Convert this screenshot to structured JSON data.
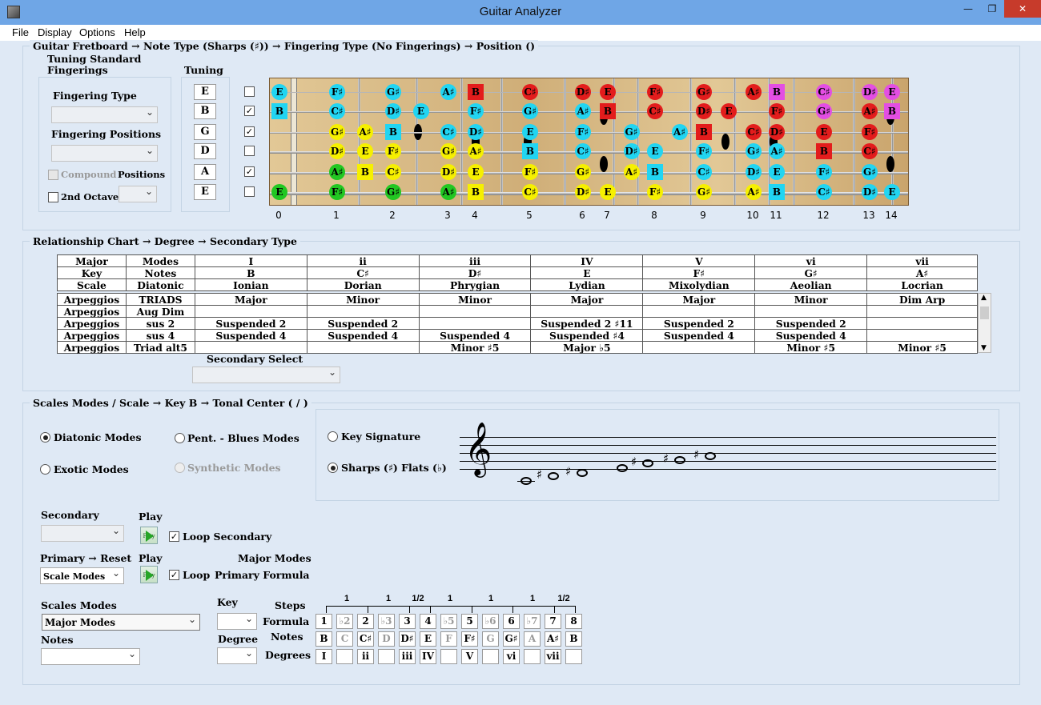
{
  "window": {
    "title": "Guitar Analyzer",
    "minimize": "—",
    "maximize": "❐",
    "close": "✕"
  },
  "menu": [
    "File",
    "Display",
    "Options",
    "Help"
  ],
  "fretboard": {
    "breadcrumb": "Guitar Fretboard  →  Note Type (Sharps (♯))  →  Fingering Type (No Fingerings)  →  Position  ()",
    "tuning_title": "Tuning Standard",
    "fingerings_label": "Fingerings",
    "tuning_label": "Tuning",
    "fingering_type_label": "Fingering Type",
    "fingering_positions_label": "Fingering Positions",
    "compound_label": "Compound",
    "positions_label": "Positions",
    "second_octave_label": "2nd Octave",
    "tuning": [
      "E",
      "B",
      "G",
      "D",
      "A",
      "E"
    ],
    "string_checked": [
      false,
      true,
      true,
      false,
      true,
      false
    ],
    "fret_numbers": [
      "0",
      "1",
      "2",
      "3",
      "4",
      "5",
      "6",
      "7",
      "8",
      "9",
      "10",
      "11",
      "12",
      "13",
      "14"
    ],
    "strings": [
      [
        [
          "E",
          0,
          "c"
        ],
        [
          "F♯",
          1,
          "c"
        ],
        [
          "G♯",
          2,
          "c"
        ],
        [
          "A♯",
          3,
          "c"
        ],
        [
          "B",
          4,
          "r"
        ],
        [
          "C♯",
          5,
          "r"
        ],
        [
          "D♯",
          6,
          "r"
        ],
        [
          "E",
          7,
          "r"
        ],
        [
          "F♯",
          8,
          "r"
        ],
        [
          "G♯",
          9,
          "r"
        ],
        [
          "A♯",
          10,
          "r"
        ],
        [
          "B",
          11,
          "m"
        ],
        [
          "C♯",
          12,
          "m"
        ],
        [
          "D♯",
          13,
          "m"
        ],
        [
          "E",
          14,
          "m"
        ]
      ],
      [
        [
          "B",
          0,
          "c"
        ],
        [
          "C♯",
          1,
          "c"
        ],
        [
          "D♯",
          2,
          "c"
        ],
        [
          "E",
          2.5,
          "c"
        ],
        [
          "F♯",
          4,
          "c"
        ],
        [
          "G♯",
          5,
          "c"
        ],
        [
          "A♯",
          6,
          "c"
        ],
        [
          "B",
          7,
          "r"
        ],
        [
          "C♯",
          8,
          "r"
        ],
        [
          "D♯",
          9,
          "r"
        ],
        [
          "E",
          9.5,
          "r"
        ],
        [
          "F♯",
          11,
          "r"
        ],
        [
          "G♯",
          12,
          "m"
        ],
        [
          "A♯",
          13,
          "r"
        ],
        [
          "B",
          14,
          "m"
        ]
      ],
      [
        [
          "G♯",
          1,
          "y"
        ],
        [
          "A♯",
          1.5,
          "y"
        ],
        [
          "B",
          2,
          "c"
        ],
        [
          "C♯",
          3,
          "c"
        ],
        [
          "D♯",
          4,
          "c"
        ],
        [
          "E",
          5,
          "c"
        ],
        [
          "F♯",
          6,
          "c"
        ],
        [
          "G♯",
          7.5,
          "c"
        ],
        [
          "A♯",
          8.5,
          "c"
        ],
        [
          "B",
          9,
          "r"
        ],
        [
          "C♯",
          10,
          "r"
        ],
        [
          "D♯",
          11,
          "r"
        ],
        [
          "E",
          12,
          "r"
        ],
        [
          "F♯",
          13,
          "r"
        ]
      ],
      [
        [
          "D♯",
          1,
          "y"
        ],
        [
          "E",
          1.5,
          "y"
        ],
        [
          "F♯",
          2,
          "y"
        ],
        [
          "G♯",
          3,
          "y"
        ],
        [
          "A♯",
          4,
          "y"
        ],
        [
          "B",
          5,
          "c"
        ],
        [
          "C♯",
          6,
          "c"
        ],
        [
          "D♯",
          7.5,
          "c"
        ],
        [
          "E",
          8,
          "c"
        ],
        [
          "F♯",
          9,
          "c"
        ],
        [
          "G♯",
          10,
          "c"
        ],
        [
          "A♯",
          11,
          "c"
        ],
        [
          "B",
          12,
          "r"
        ],
        [
          "C♯",
          13,
          "r"
        ]
      ],
      [
        [
          "A♯",
          1,
          "g"
        ],
        [
          "B",
          1.5,
          "y"
        ],
        [
          "C♯",
          2,
          "y"
        ],
        [
          "D♯",
          3,
          "y"
        ],
        [
          "E",
          4,
          "y"
        ],
        [
          "F♯",
          5,
          "y"
        ],
        [
          "G♯",
          6,
          "y"
        ],
        [
          "A♯",
          7.5,
          "y"
        ],
        [
          "B",
          8,
          "c"
        ],
        [
          "C♯",
          9,
          "c"
        ],
        [
          "D♯",
          10,
          "c"
        ],
        [
          "E",
          11,
          "c"
        ],
        [
          "F♯",
          12,
          "c"
        ],
        [
          "G♯",
          13,
          "c"
        ]
      ],
      [
        [
          "E",
          0,
          "g"
        ],
        [
          "F♯",
          1,
          "g"
        ],
        [
          "G♯",
          2,
          "g"
        ],
        [
          "A♯",
          3,
          "g"
        ],
        [
          "B",
          4,
          "y"
        ],
        [
          "C♯",
          5,
          "y"
        ],
        [
          "D♯",
          6,
          "y"
        ],
        [
          "E",
          7,
          "y"
        ],
        [
          "F♯",
          8,
          "y"
        ],
        [
          "G♯",
          9,
          "y"
        ],
        [
          "A♯",
          10,
          "y"
        ],
        [
          "B",
          11,
          "c"
        ],
        [
          "C♯",
          12,
          "c"
        ],
        [
          "D♯",
          13,
          "c"
        ],
        [
          "E",
          14,
          "c"
        ]
      ]
    ],
    "note_colors": {
      "c": "#21d5f2",
      "r": "#e31c1c",
      "m": "#e34ee3",
      "y": "#f6f000",
      "g": "#22c722"
    }
  },
  "relationship": {
    "breadcrumb": "Relationship Chart  →  Degree  →  Secondary Type",
    "rows": [
      [
        "Major",
        "Modes",
        "I",
        "ii",
        "iii",
        "IV",
        "V",
        "vi",
        "vii"
      ],
      [
        "Key",
        "Notes",
        "B",
        "C♯",
        "D♯",
        "E",
        "F♯",
        "G♯",
        "A♯"
      ],
      [
        "Scale",
        "Diatonic",
        "Ionian",
        "Dorian",
        "Phrygian",
        "Lydian",
        "Mixolydian",
        "Aeolian",
        "Locrian"
      ]
    ],
    "arp_rows": [
      [
        "Arpeggios",
        "TRIADS",
        "Major",
        "Minor",
        "Minor",
        "Major",
        "Major",
        "Minor",
        "Dim Arp"
      ],
      [
        "Arpeggios",
        "Aug Dim",
        "",
        "",
        "",
        "",
        "",
        "",
        ""
      ],
      [
        "Arpeggios",
        "sus 2",
        "Suspended 2",
        "Suspended 2",
        "",
        "Suspended 2 ♯11",
        "Suspended 2",
        "Suspended 2",
        ""
      ],
      [
        "Arpeggios",
        "sus 4",
        "Suspended 4",
        "Suspended 4",
        "Suspended 4",
        "Suspended ♯4",
        "Suspended 4",
        "Suspended 4",
        ""
      ],
      [
        "Arpeggios",
        "Triad alt5",
        "",
        "",
        "Minor ♯5",
        "Major ♭5",
        "",
        "Minor ♯5",
        "Minor ♯5"
      ]
    ],
    "secondary_select_label": "Secondary Select"
  },
  "scales": {
    "breadcrumb": "Scales Modes / Scale → Key  B → Tonal Center   (   /   )",
    "diatonic_modes": "Diatonic Modes",
    "pent_blues": "Pent. - Blues Modes",
    "exotic_modes": "Exotic Modes",
    "synthetic_modes": "Synthetic Modes",
    "key_signature": "Key Signature",
    "sharps_flats": "Sharps (♯)   Flats (♭)",
    "secondary_label": "Secondary",
    "play_label": "Play",
    "loop_secondary": "Loop Secondary",
    "primary_reset": "Primary → Reset",
    "play2_label": "Play",
    "major_modes_caption": "Major Modes",
    "loop_label": "Loop",
    "primary_formula": "Primary Formula",
    "scale_modes_value": "Scale Modes",
    "scales_modes_label": "Scales Modes",
    "scales_modes_value": "Major Modes",
    "notes_label": "Notes",
    "key_label": "Key",
    "degree_label": "Degree",
    "steps_label": "Steps",
    "formula_label": "Formula",
    "notes_row_label": "Notes",
    "degrees_label": "Degrees",
    "steps": [
      "1",
      "1",
      "1/2",
      "1",
      "1",
      "1",
      "1/2"
    ],
    "formula": [
      "1",
      "♭2",
      "2",
      "♭3",
      "3",
      "4",
      "♭5",
      "5",
      "♭6",
      "6",
      "♭7",
      "7",
      "8"
    ],
    "formula_active": [
      true,
      false,
      true,
      false,
      true,
      true,
      false,
      true,
      false,
      true,
      false,
      true,
      true
    ],
    "notes": [
      "B",
      "C",
      "C♯",
      "D",
      "D♯",
      "E",
      "F",
      "F♯",
      "G",
      "G♯",
      "A",
      "A♯",
      "B"
    ],
    "degrees": [
      "I",
      "",
      "ii",
      "",
      "iii",
      "IV",
      "",
      "V",
      "",
      "vi",
      "",
      "vii",
      ""
    ],
    "play_btn_text": "Play"
  },
  "staff_notes": [
    {
      "y": 1.5,
      "sharp": false
    },
    {
      "y": 1,
      "sharp": true
    },
    {
      "y": 0.5,
      "sharp": true
    },
    {
      "y": 0,
      "sharp": false
    },
    {
      "y": -0.5,
      "sharp": true
    },
    {
      "y": -1,
      "sharp": true
    },
    {
      "y": -1.5,
      "sharp": true
    }
  ]
}
